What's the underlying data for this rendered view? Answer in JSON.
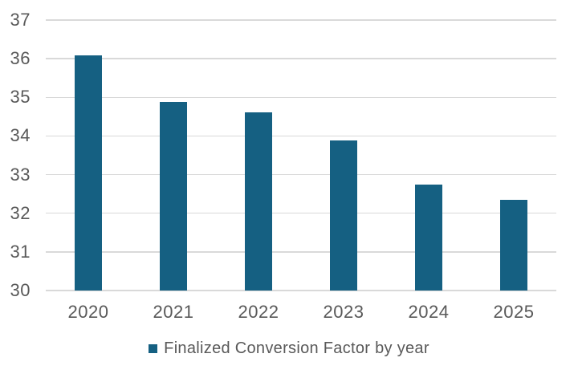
{
  "chart_data": {
    "type": "bar",
    "title": "",
    "categories": [
      "2020",
      "2021",
      "2022",
      "2023",
      "2024",
      "2025"
    ],
    "values": [
      36.09,
      34.89,
      34.61,
      33.89,
      32.74,
      32.35
    ],
    "series_name": "Finalized Conversion Factor by year",
    "xlabel": "",
    "ylabel": "",
    "ylim": [
      30,
      37
    ],
    "yticks": [
      37,
      36,
      35,
      34,
      33,
      32,
      31,
      30
    ],
    "grid": "horizontal",
    "legend": {
      "label": "Finalized Conversion Factor by year",
      "position": "bottom"
    },
    "colors": {
      "bar": "#156082",
      "axis_text": "#595959",
      "gridline": "#D9D9D9",
      "background": "#FFFFFF"
    }
  }
}
